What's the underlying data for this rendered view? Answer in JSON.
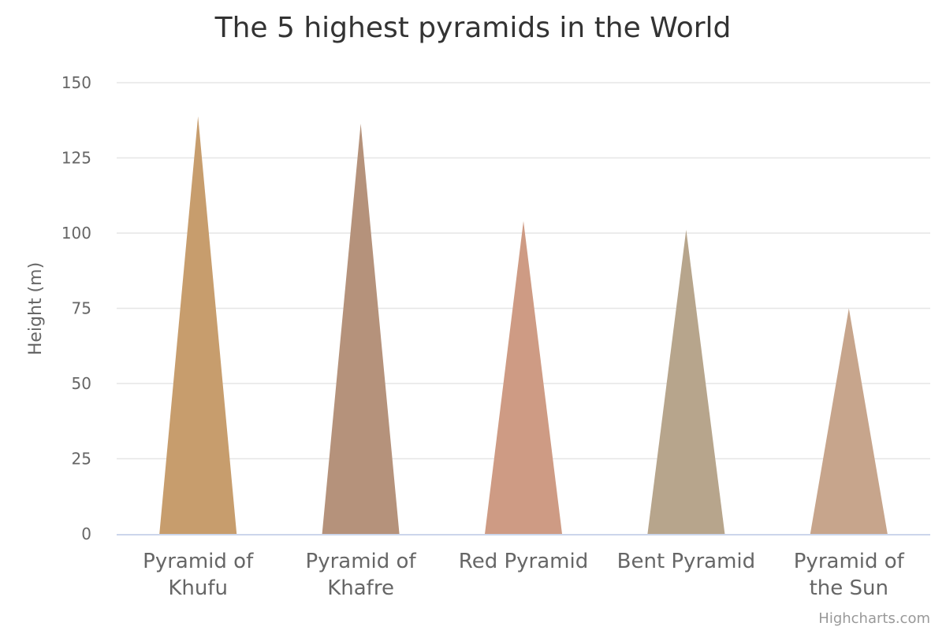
{
  "chart_data": {
    "type": "bar",
    "title": "The 5 highest pyramids in the World",
    "ylabel": "Height (m)",
    "xlabel": "",
    "categories": [
      "Pyramid of Khufu",
      "Pyramid of Khafre",
      "Red Pyramid",
      "Bent Pyramid",
      "Pyramid of the Sun"
    ],
    "values": [
      138.8,
      136.4,
      104,
      101.1,
      75
    ],
    "ylim": [
      0,
      150
    ],
    "yticks": [
      0,
      25,
      50,
      75,
      100,
      125,
      150
    ],
    "grid": true,
    "legend": "none",
    "colors": [
      "#C79D6D",
      "#B5927B",
      "#CE9B84",
      "#B7A58C",
      "#C7A58C"
    ],
    "axis_line_color": "#ccd6eb",
    "grid_color": "#e6e6e6"
  },
  "credits": "Highcharts.com"
}
